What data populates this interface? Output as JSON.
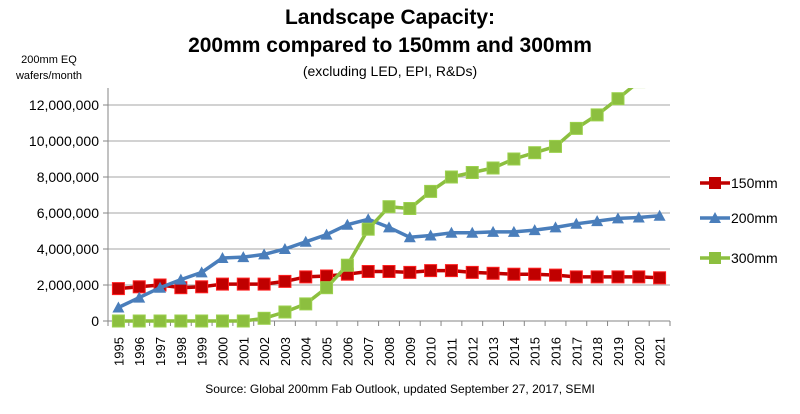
{
  "chart_data": {
    "type": "line",
    "title": "Landscape Capacity:",
    "title_line2": "200mm compared to 150mm and 300mm",
    "subtitle": "(excluding LED, EPI, R&Ds)",
    "ylabel": "200mm EQ wafers/month",
    "xlabel": "",
    "source": "Source: Global 200mm Fab Outlook, updated September 27, 2017, SEMI",
    "ylim": [
      0,
      12000000
    ],
    "yticks": [
      "0",
      "2,000,000",
      "4,000,000",
      "6,000,000",
      "8,000,000",
      "10,000,000",
      "12,000,000"
    ],
    "grid": true,
    "legend": "right",
    "x": [
      1995,
      1996,
      1997,
      1998,
      1999,
      2000,
      2001,
      2002,
      2003,
      2004,
      2005,
      2006,
      2007,
      2008,
      2009,
      2010,
      2011,
      2012,
      2013,
      2014,
      2015,
      2016,
      2017,
      2018,
      2019,
      2020,
      2021
    ],
    "series": [
      {
        "name": "150mm",
        "color": "#c00000",
        "marker": "square",
        "values": [
          1800000,
          1900000,
          2000000,
          1850000,
          1900000,
          2050000,
          2050000,
          2050000,
          2200000,
          2450000,
          2500000,
          2600000,
          2750000,
          2750000,
          2700000,
          2800000,
          2800000,
          2700000,
          2650000,
          2600000,
          2600000,
          2550000,
          2450000,
          2450000,
          2450000,
          2450000,
          2400000
        ]
      },
      {
        "name": "200mm",
        "color": "#4a7ebb",
        "marker": "triangle",
        "values": [
          750000,
          1300000,
          1850000,
          2300000,
          2700000,
          3500000,
          3550000,
          3700000,
          4000000,
          4400000,
          4800000,
          5350000,
          5650000,
          5200000,
          4650000,
          4750000,
          4900000,
          4900000,
          4950000,
          4950000,
          5050000,
          5200000,
          5400000,
          5550000,
          5700000,
          5750000,
          5850000
        ]
      },
      {
        "name": "300mm",
        "color": "#8cbf3f",
        "marker": "square",
        "values": [
          0,
          0,
          0,
          0,
          0,
          0,
          0,
          150000,
          500000,
          950000,
          1850000,
          3100000,
          5100000,
          6350000,
          6250000,
          7200000,
          8000000,
          8250000,
          8500000,
          9000000,
          9350000,
          9700000,
          10700000,
          11450000,
          12350000,
          13300000,
          null
        ]
      }
    ]
  }
}
